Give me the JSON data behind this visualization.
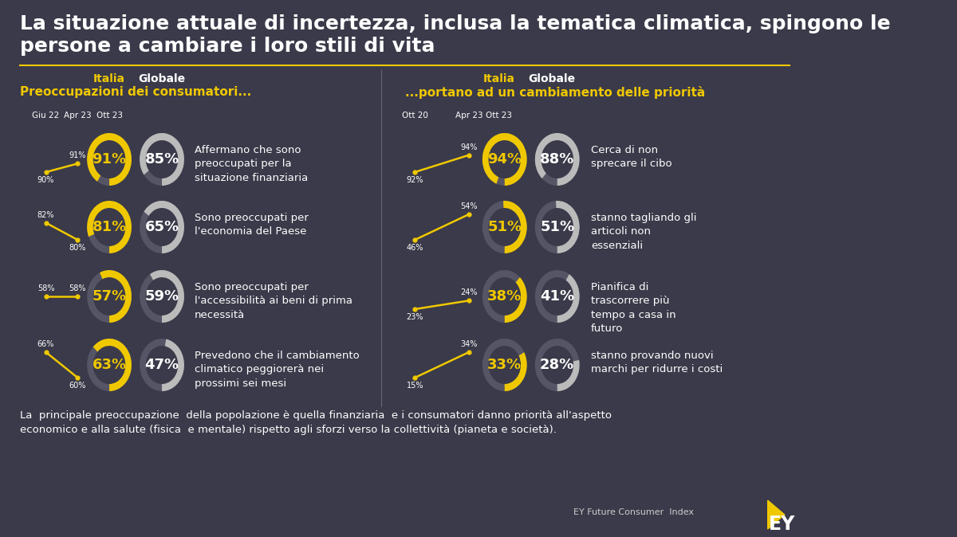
{
  "bg_color": "#3a3a4a",
  "title_line1": "La situazione attuale di incertezza, inclusa la tematica climatica, spingono le",
  "title_line2": "persone a cambiare i loro stili di vita",
  "title_color": "#ffffff",
  "title_fontsize": 18,
  "yellow": "#f0c800",
  "gray_ring": "#bbbbbb",
  "ring_bg": "#555566",
  "white": "#ffffff",
  "left_section_label": "Preoccupazioni dei consumatori...",
  "right_section_label": "...portano ad un cambiamento delle priorità",
  "left_italia_label": "Italia",
  "left_globale_label": "Globale",
  "right_italia_label": "Italia",
  "right_globale_label": "Globale",
  "left_time_labels": [
    "Giu 22",
    "Apr 23",
    "Ott 23"
  ],
  "right_time_labels": [
    "Ott 20",
    "Apr 23",
    "Ott 23"
  ],
  "left_rows": [
    {
      "trend": [
        90,
        91,
        91
      ],
      "italia_val": 91,
      "globale_val": 85,
      "label": "Affermano che sono\npreoccupati per la\nsituazione finanziaria"
    },
    {
      "trend": [
        82,
        80,
        81
      ],
      "italia_val": 81,
      "globale_val": 65,
      "label": "Sono preoccupati per\nl'economia del Paese"
    },
    {
      "trend": [
        58,
        58,
        57
      ],
      "italia_val": 57,
      "globale_val": 59,
      "label": "Sono preoccupati per\nl'accessibilità ai beni di prima\nnecessità"
    },
    {
      "trend": [
        66,
        60,
        63
      ],
      "italia_val": 63,
      "globale_val": 47,
      "label": "Prevedono che il cambiamento\nclimatico peggiorerà nei\nprossimi sei mesi"
    }
  ],
  "right_rows": [
    {
      "trend": [
        92,
        94,
        94
      ],
      "italia_val": 94,
      "globale_val": 88,
      "label": "Cerca di non\nsprecare il cibo"
    },
    {
      "trend": [
        46,
        54,
        51
      ],
      "italia_val": 51,
      "globale_val": 51,
      "label": "stanno tagliando gli\narticoli non\nessenziali"
    },
    {
      "trend": [
        23,
        24,
        38
      ],
      "italia_val": 38,
      "globale_val": 41,
      "label": "Pianifica di\ntrascorrere più\ntempo a casa in\nfuturo"
    },
    {
      "trend": [
        15,
        34,
        33
      ],
      "italia_val": 33,
      "globale_val": 28,
      "label": "stanno provando nuovi\nmarchi per ridurre i costi"
    }
  ],
  "footer_text": "La  principale preoccupazione  della popolazione è quella finanziaria  e i consumatori danno priorità all'aspetto\neconomico e alla salute (fisica  e mentale) rispetto agli sforzi verso la collettività (pianeta e società).",
  "footer_brand": "EY Future Consumer  Index"
}
